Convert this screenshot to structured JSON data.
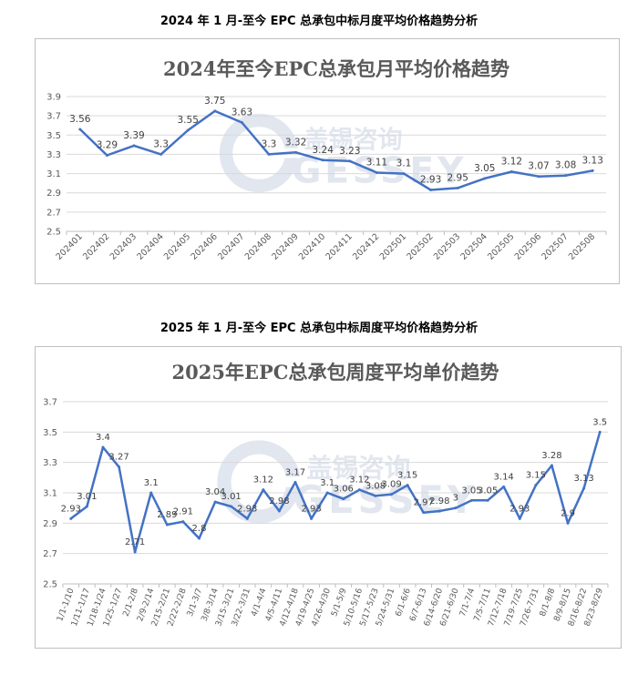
{
  "sections": [
    {
      "heading": "2024 年 1 月-至今 EPC 总承包中标月度平均价格趋势分析"
    },
    {
      "heading": "2025 年 1 月-至今 EPC 总承包中标周度平均价格趋势分析"
    }
  ],
  "watermark": {
    "cn": "盖锡咨询",
    "en": "GESSEY"
  },
  "colors": {
    "line": "#4472c4",
    "grid": "#d9d9d9",
    "text": "#595959",
    "watermark": "#c9d3e3"
  },
  "chart_data": [
    {
      "type": "line",
      "title": "2024年至今EPC总承包月平均价格趋势",
      "xlabel": "",
      "ylabel": "",
      "ylim": [
        2.5,
        3.9
      ],
      "yticks": [
        2.5,
        2.7,
        2.9,
        3.1,
        3.3,
        3.5,
        3.7,
        3.9
      ],
      "grid": true,
      "legend": "none",
      "categories": [
        "202401",
        "202402",
        "202403",
        "202404",
        "202405",
        "202406",
        "202407",
        "202408",
        "202409",
        "202410",
        "202411",
        "202412",
        "202501",
        "202502",
        "202503",
        "202504",
        "202505",
        "202506",
        "202507",
        "202508"
      ],
      "series": [
        {
          "values": [
            3.56,
            3.29,
            3.39,
            3.3,
            3.55,
            3.75,
            3.63,
            3.3,
            3.32,
            3.24,
            3.23,
            3.11,
            3.1,
            2.93,
            2.95,
            3.05,
            3.12,
            3.07,
            3.08,
            3.13
          ]
        }
      ]
    },
    {
      "type": "line",
      "title": "2025年EPC总承包周度平均单价趋势",
      "xlabel": "",
      "ylabel": "",
      "ylim": [
        2.5,
        3.7
      ],
      "yticks": [
        2.5,
        2.7,
        2.9,
        3.1,
        3.3,
        3.5,
        3.7
      ],
      "grid": true,
      "legend": "none",
      "categories": [
        "1/1-1/10",
        "1/11-1/17",
        "1/18-1/24",
        "1/25-1/27",
        "2/1-2/8",
        "2/9-2/14",
        "2/15-2/21",
        "2/22-2/28",
        "3/1-3/7",
        "3/8-3/14",
        "3/15-3/21",
        "3/22-3/31",
        "4/1-4/4",
        "4/5-4/11",
        "4/12-4/18",
        "4/19-4/25",
        "4/26-4/30",
        "5/1-5/9",
        "5/10-5/16",
        "5/17-5/23",
        "5/24-5/31",
        "6/1-6/6",
        "6/7-6/13",
        "6/14-6/20",
        "6/21-6/30",
        "7/1-7/4",
        "7/5-7/11",
        "7/12-7/18",
        "7/19-7/25",
        "7/26-7/31",
        "8/1-8/8",
        "8/9-8/15",
        "8/16-8/22",
        "8/23-8/29"
      ],
      "series": [
        {
          "values": [
            2.93,
            3.01,
            3.4,
            3.27,
            2.71,
            3.1,
            2.89,
            2.91,
            2.8,
            3.04,
            3.01,
            2.93,
            3.12,
            2.98,
            3.17,
            2.93,
            3.1,
            3.06,
            3.12,
            3.08,
            3.09,
            3.15,
            2.97,
            2.98,
            3,
            3.05,
            3.05,
            3.14,
            2.93,
            3.15,
            3.28,
            2.9,
            3.13,
            3.5
          ]
        }
      ]
    }
  ]
}
